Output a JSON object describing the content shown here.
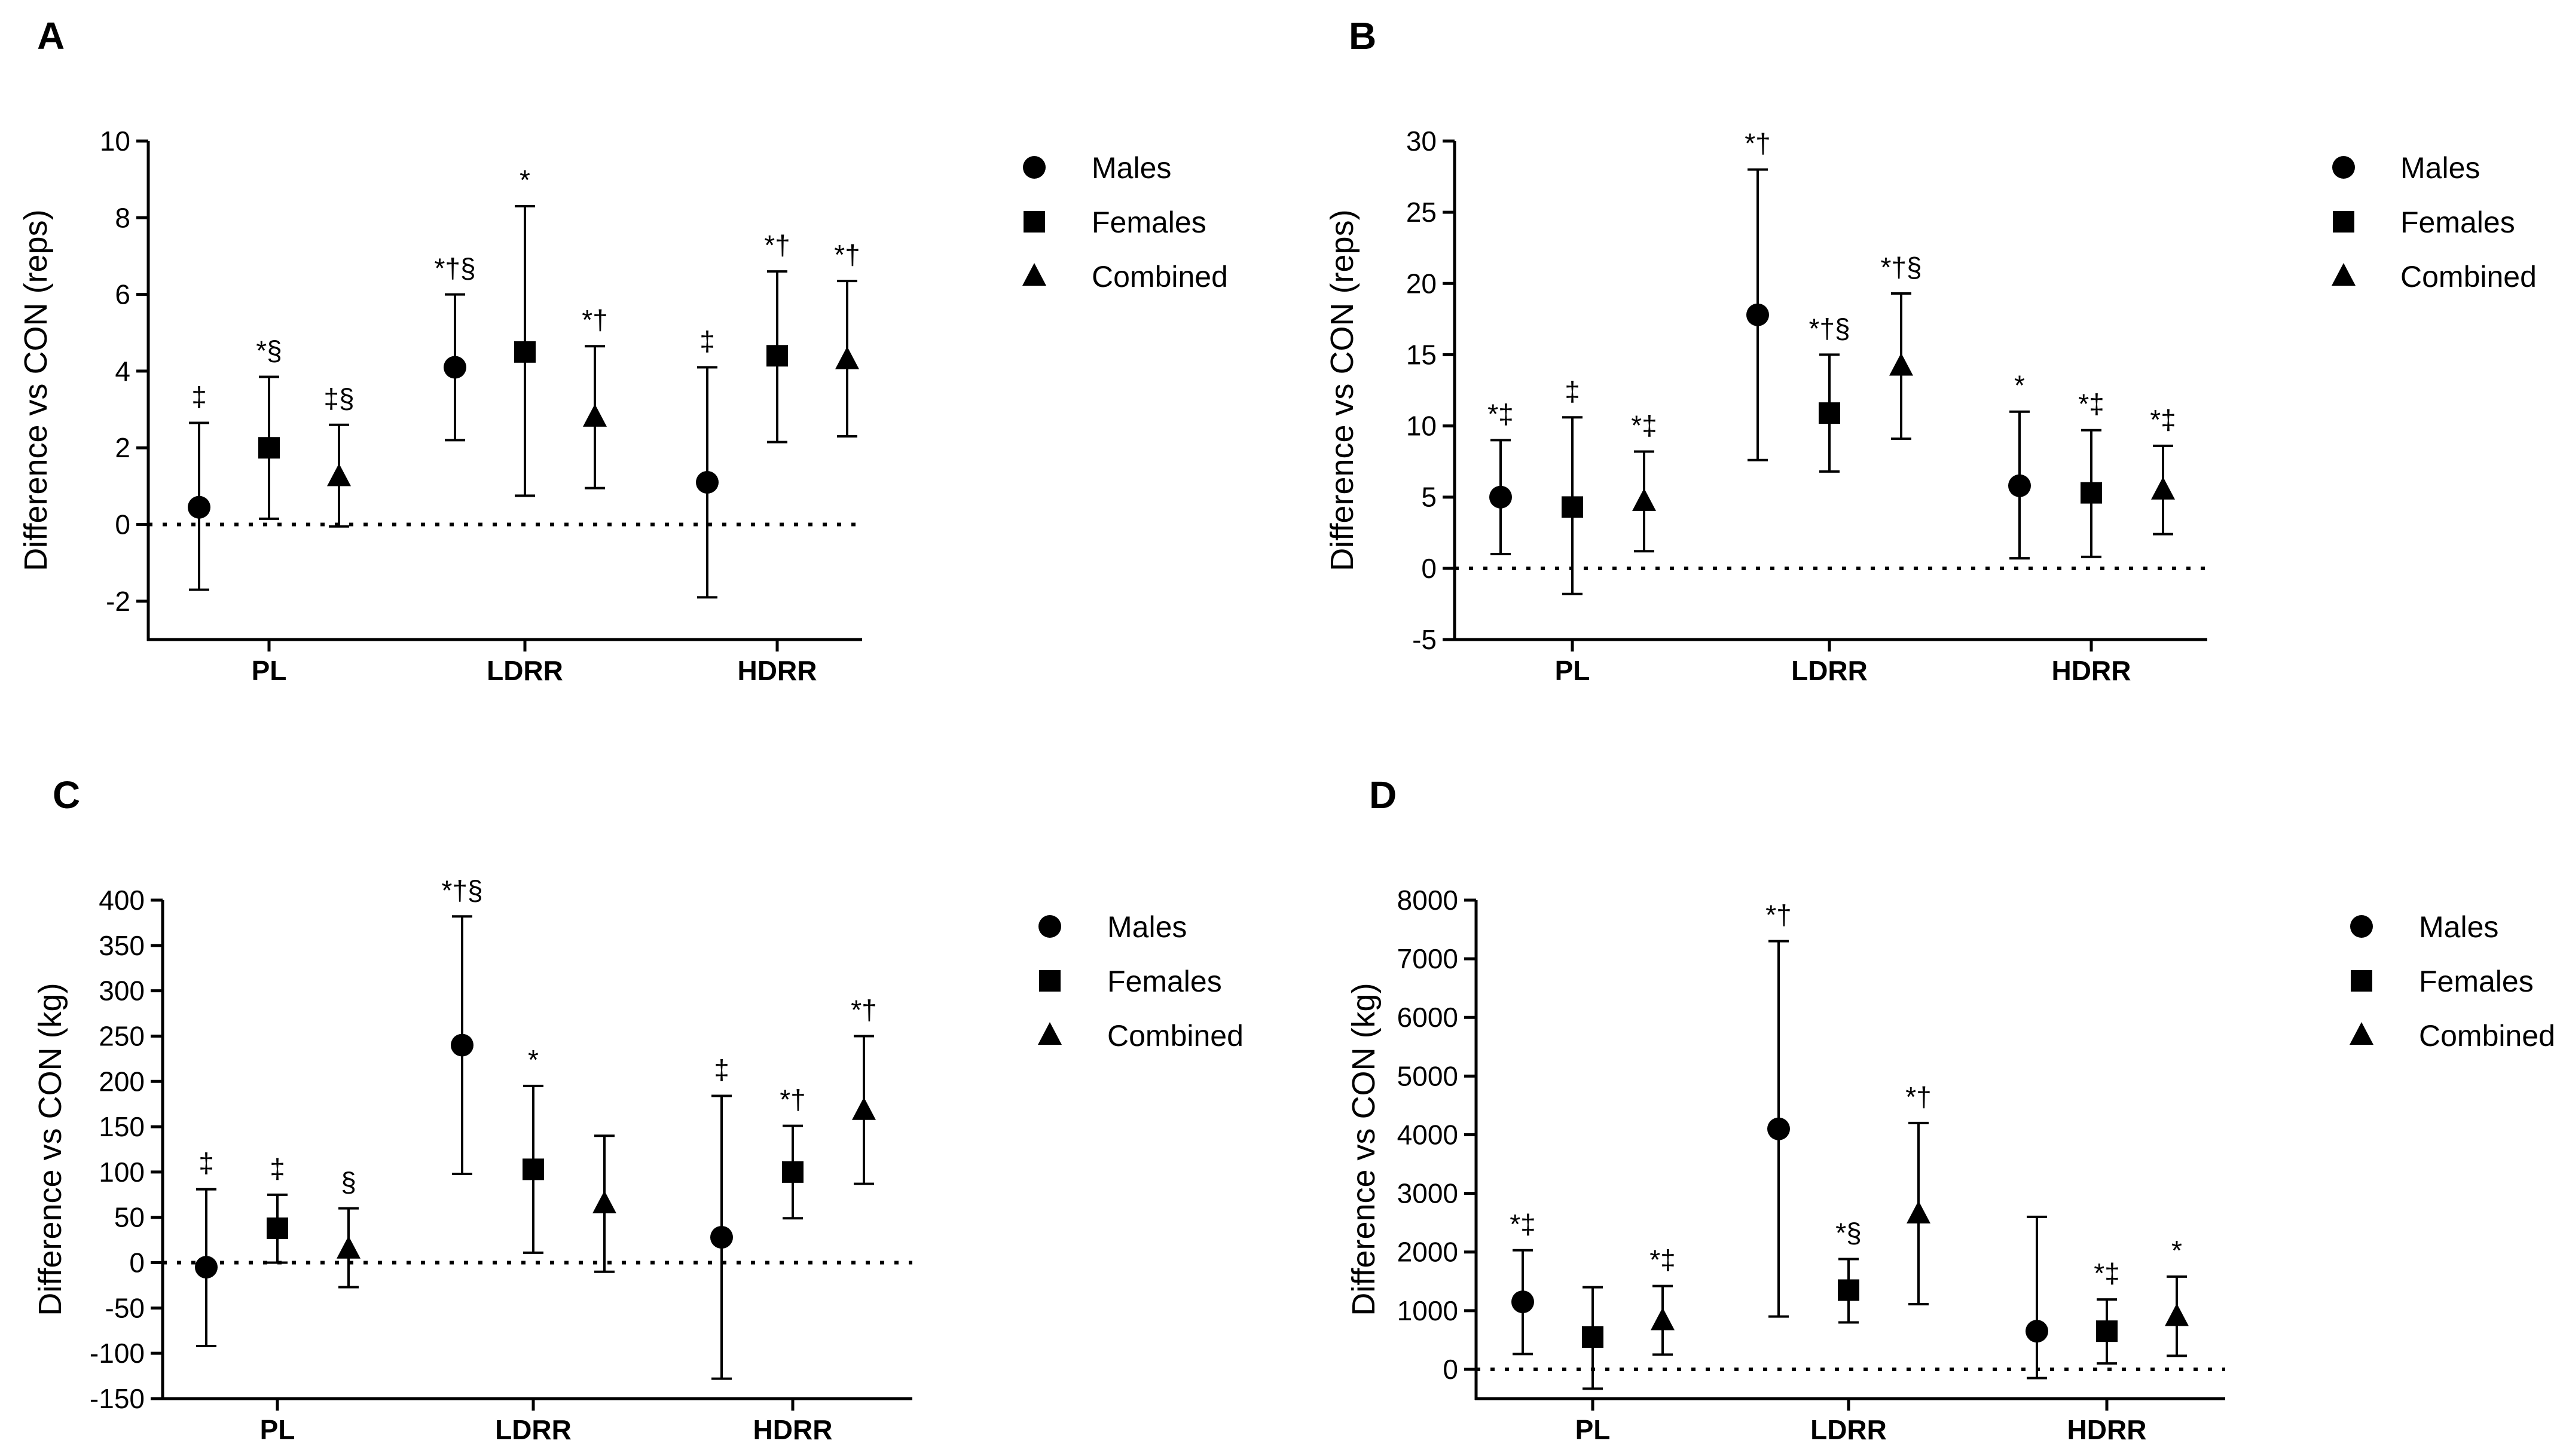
{
  "chart_data": [
    {
      "panel": "A",
      "type": "scatter",
      "ylabel": "Difference vs CON (reps)",
      "ylim": [
        -3,
        10
      ],
      "yticks": [
        -2,
        0,
        2,
        4,
        6,
        8,
        10
      ],
      "ytick_labels": [
        "-2",
        "0",
        "2",
        "4",
        "6",
        "8",
        "10"
      ],
      "categories": [
        "PL",
        "LDRR",
        "HDRR"
      ],
      "legend": [
        "Males",
        "Females",
        "Combined"
      ],
      "reference_line": 0,
      "series": [
        {
          "name": "Males",
          "marker": "circle",
          "values": [
            0.45,
            4.1,
            1.1
          ],
          "lower": [
            -1.7,
            2.2,
            -1.9
          ],
          "upper": [
            2.65,
            6.0,
            4.1
          ],
          "annotations": [
            "‡",
            "*†§",
            "‡"
          ]
        },
        {
          "name": "Females",
          "marker": "square",
          "values": [
            2.0,
            4.5,
            4.4
          ],
          "lower": [
            0.15,
            0.75,
            2.15
          ],
          "upper": [
            3.85,
            8.3,
            6.6
          ],
          "annotations": [
            "*§",
            "*",
            "*†"
          ]
        },
        {
          "name": "Combined",
          "marker": "triangle",
          "values": [
            1.25,
            2.8,
            4.3
          ],
          "lower": [
            -0.05,
            0.95,
            2.3
          ],
          "upper": [
            2.6,
            4.65,
            6.35
          ],
          "annotations": [
            "‡§",
            "*†",
            "*†"
          ]
        }
      ]
    },
    {
      "panel": "B",
      "type": "scatter",
      "ylabel": "Difference vs CON (reps)",
      "ylim": [
        -5,
        30
      ],
      "yticks": [
        -5,
        0,
        5,
        10,
        15,
        20,
        25,
        30
      ],
      "ytick_labels": [
        "-5",
        "0",
        "5",
        "10",
        "15",
        "20",
        "25",
        "30"
      ],
      "categories": [
        "PL",
        "LDRR",
        "HDRR"
      ],
      "legend": [
        "Males",
        "Females",
        "Combined"
      ],
      "reference_line": 0,
      "series": [
        {
          "name": "Males",
          "marker": "circle",
          "values": [
            5.0,
            17.8,
            5.8
          ],
          "lower": [
            1.0,
            7.6,
            0.7
          ],
          "upper": [
            9.0,
            28.0,
            11.0
          ],
          "annotations": [
            "*‡",
            "*†",
            "*"
          ]
        },
        {
          "name": "Females",
          "marker": "square",
          "values": [
            4.3,
            10.9,
            5.3
          ],
          "lower": [
            -1.8,
            6.8,
            0.8
          ],
          "upper": [
            10.6,
            15.0,
            9.7
          ],
          "annotations": [
            "‡",
            "*†§",
            "*‡"
          ]
        },
        {
          "name": "Combined",
          "marker": "triangle",
          "values": [
            4.7,
            14.2,
            5.5
          ],
          "lower": [
            1.2,
            9.1,
            2.4
          ],
          "upper": [
            8.2,
            19.3,
            8.6
          ],
          "annotations": [
            "*‡",
            "*†§",
            "*‡"
          ]
        }
      ]
    },
    {
      "panel": "C",
      "type": "scatter",
      "ylabel": "Difference vs CON (kg)",
      "ylim": [
        -150,
        400
      ],
      "yticks": [
        -150,
        -100,
        -50,
        0,
        50,
        100,
        150,
        200,
        250,
        300,
        350,
        400
      ],
      "ytick_labels": [
        "-150",
        "-100",
        "-50",
        "0",
        "50",
        "100",
        "150",
        "200",
        "250",
        "300",
        "350",
        "400"
      ],
      "categories": [
        "PL",
        "LDRR",
        "HDRR"
      ],
      "legend": [
        "Males",
        "Females",
        "Combined"
      ],
      "reference_line": 0,
      "series": [
        {
          "name": "Males",
          "marker": "circle",
          "values": [
            -5,
            240,
            28
          ],
          "lower": [
            -92,
            98,
            -128
          ],
          "upper": [
            81,
            382,
            184
          ],
          "annotations": [
            "‡",
            "*†§",
            "‡"
          ]
        },
        {
          "name": "Females",
          "marker": "square",
          "values": [
            38,
            103,
            100
          ],
          "lower": [
            0,
            11,
            49
          ],
          "upper": [
            75,
            195,
            151
          ],
          "annotations": [
            "‡",
            "*",
            "*†"
          ]
        },
        {
          "name": "Combined",
          "marker": "triangle",
          "values": [
            15,
            65,
            168
          ],
          "lower": [
            -27,
            -10,
            87
          ],
          "upper": [
            60,
            140,
            250
          ],
          "annotations": [
            "§",
            "",
            "*†"
          ]
        }
      ]
    },
    {
      "panel": "D",
      "type": "scatter",
      "ylabel": "Difference vs CON (kg)",
      "ylim": [
        -500,
        8000
      ],
      "yticks": [
        0,
        1000,
        2000,
        3000,
        4000,
        5000,
        6000,
        7000,
        8000
      ],
      "ytick_labels": [
        "0",
        "1000",
        "2000",
        "3000",
        "4000",
        "5000",
        "6000",
        "7000",
        "8000"
      ],
      "categories": [
        "PL",
        "LDRR",
        "HDRR"
      ],
      "legend": [
        "Males",
        "Females",
        "Combined"
      ],
      "reference_line": 0,
      "series": [
        {
          "name": "Males",
          "marker": "circle",
          "values": [
            1150,
            4100,
            650
          ],
          "lower": [
            260,
            900,
            -150
          ],
          "upper": [
            2030,
            7300,
            2600
          ],
          "annotations": [
            "*‡",
            "*†",
            ""
          ]
        },
        {
          "name": "Females",
          "marker": "square",
          "values": [
            550,
            1350,
            650
          ],
          "lower": [
            -330,
            800,
            100
          ],
          "upper": [
            1400,
            1880,
            1190
          ],
          "annotations": [
            "",
            "*§",
            "*‡"
          ]
        },
        {
          "name": "Combined",
          "marker": "triangle",
          "values": [
            830,
            2650,
            900
          ],
          "lower": [
            250,
            1110,
            230
          ],
          "upper": [
            1420,
            4200,
            1580
          ],
          "annotations": [
            "*‡",
            "*†",
            "*"
          ]
        }
      ]
    }
  ]
}
